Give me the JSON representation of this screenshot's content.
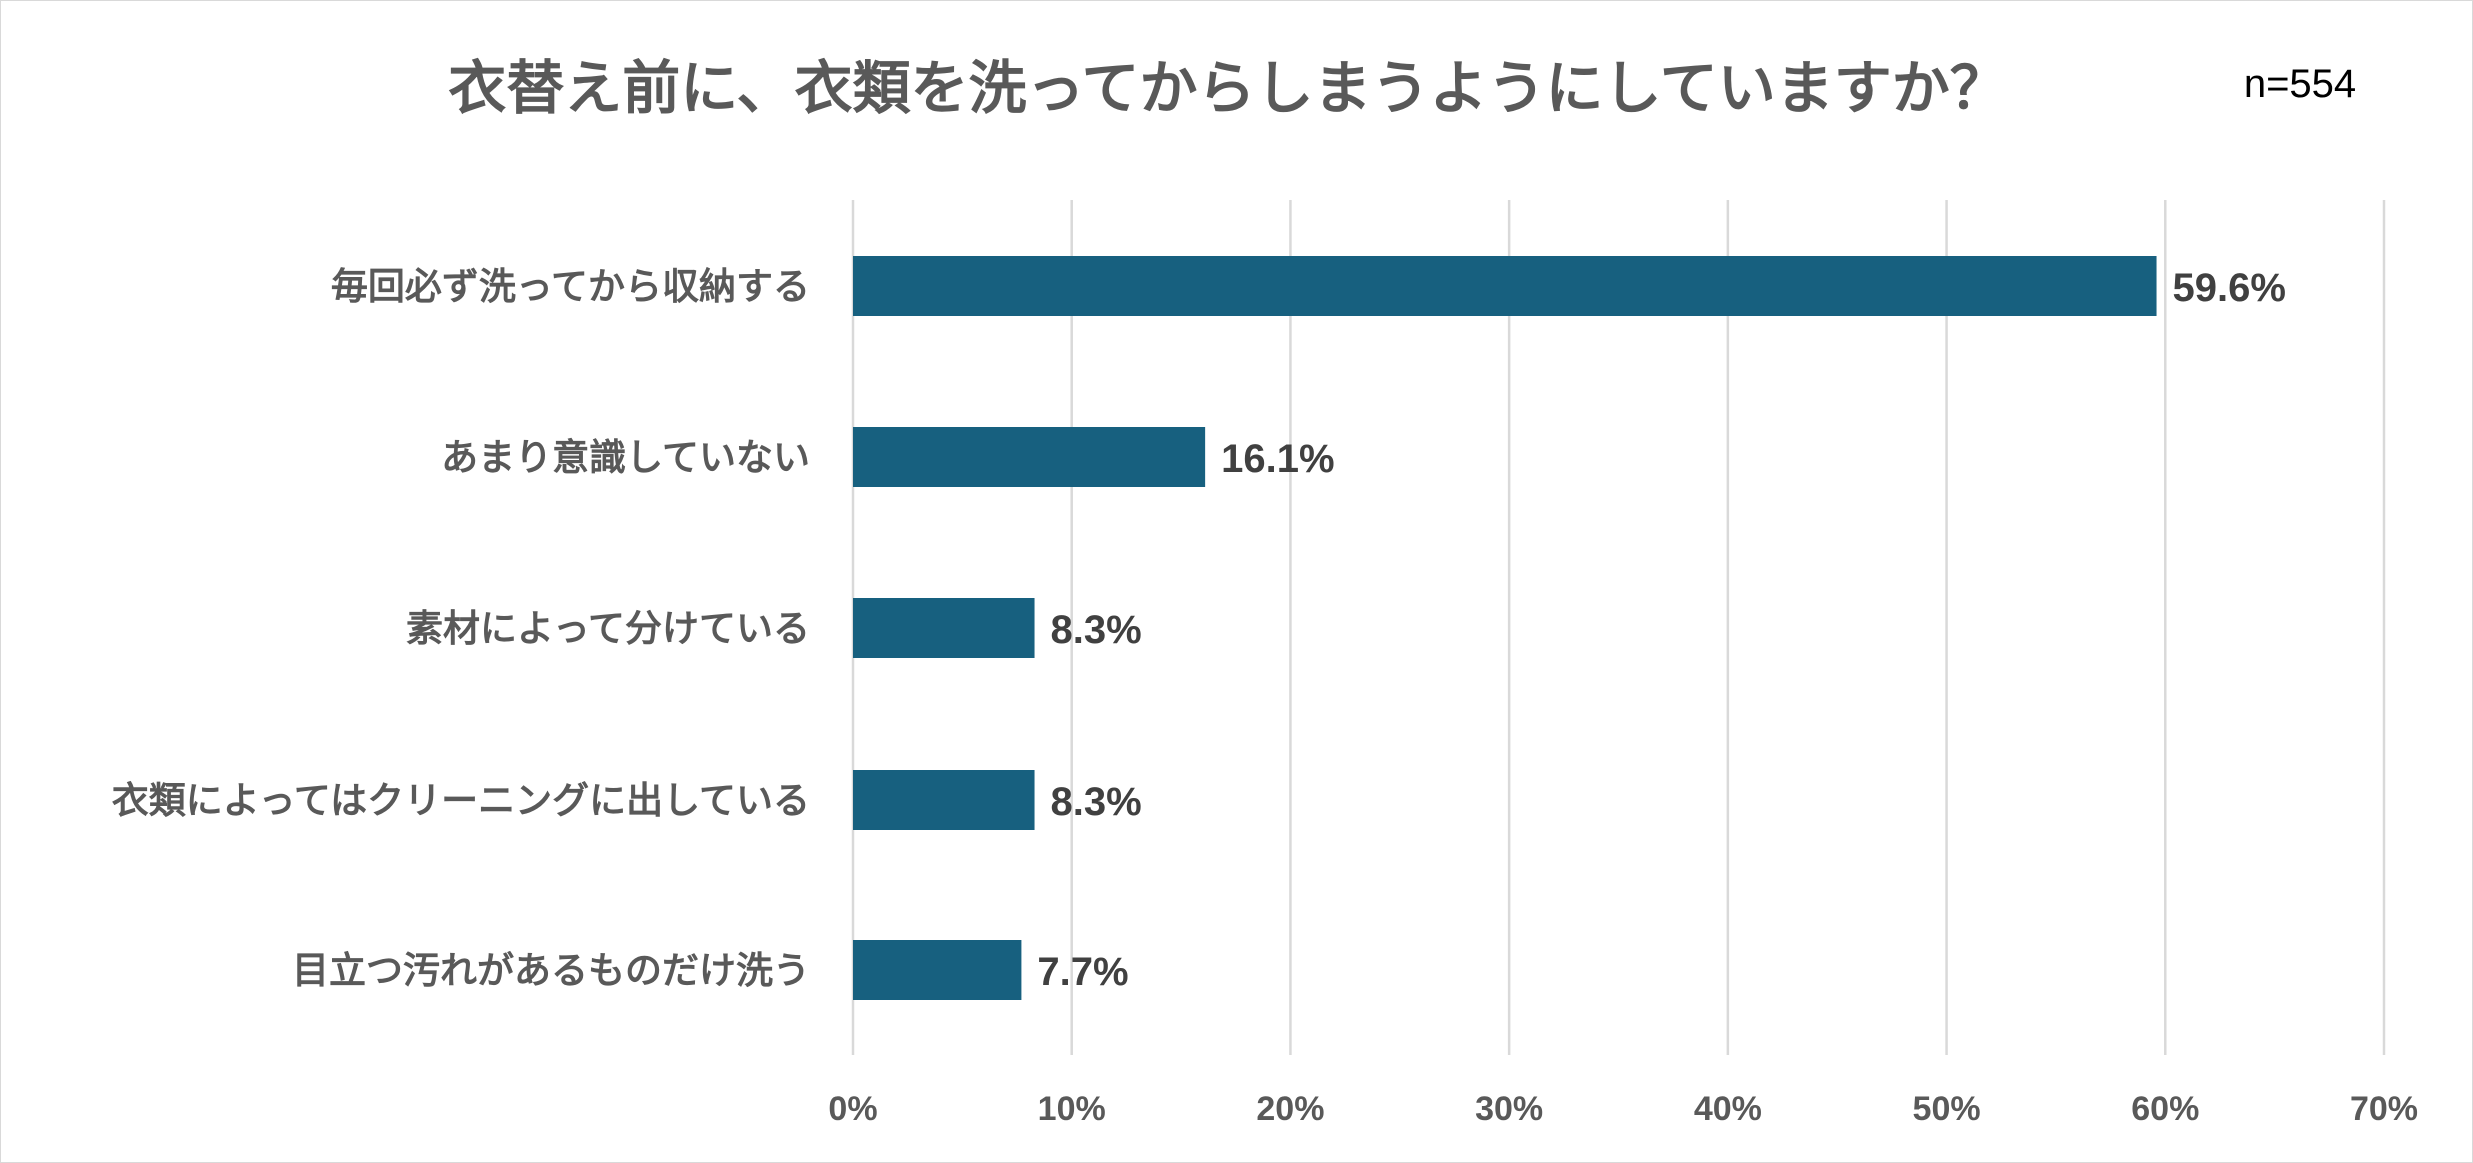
{
  "chart_data": {
    "type": "bar",
    "orientation": "horizontal",
    "title": "衣替え前に、衣類を洗ってからしまうようにしていますか？",
    "sample_size": "n=554",
    "categories": [
      "毎回必ず洗ってから収納する",
      "あまり意識していない",
      "素材によって分けている",
      "衣類によってはクリーニングに出している",
      "目立つ汚れがあるものだけ洗う"
    ],
    "values": [
      59.6,
      16.1,
      8.3,
      8.3,
      7.7
    ],
    "value_labels": [
      "59.6%",
      "16.1%",
      "8.3%",
      "8.3%",
      "7.7%"
    ],
    "xlim": [
      0,
      70
    ],
    "x_ticks": [
      0,
      10,
      20,
      30,
      40,
      50,
      60,
      70
    ],
    "x_tick_labels": [
      "0%",
      "10%",
      "20%",
      "30%",
      "40%",
      "50%",
      "60%",
      "70%"
    ],
    "grid": "vertical",
    "bar_color": "#17607f"
  }
}
